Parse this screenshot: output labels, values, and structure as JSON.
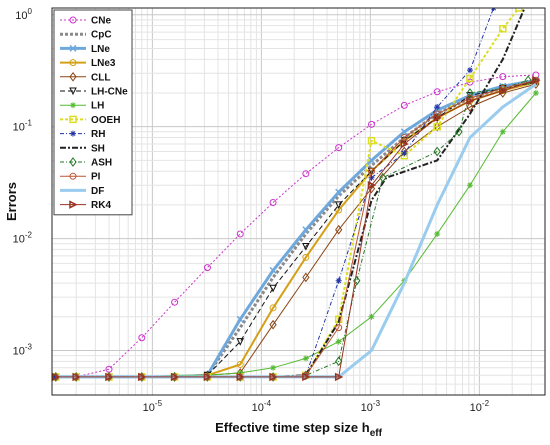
{
  "chart_data": {
    "type": "line",
    "xscale": "log",
    "yscale": "log",
    "xlim": [
      1.2e-06,
      0.04
    ],
    "ylim": [
      0.0004,
      1.15
    ],
    "grid": true,
    "legend_placement": "top-left",
    "xlabel": "Effective time step size h",
    "xlabel_sub": "eff",
    "ylabel": "Errors",
    "x_ticks": [
      {
        "value": 1e-05,
        "base": "10",
        "exp": "-5"
      },
      {
        "value": 0.0001,
        "base": "10",
        "exp": "-4"
      },
      {
        "value": 0.001,
        "base": "10",
        "exp": "-3"
      },
      {
        "value": 0.01,
        "base": "10",
        "exp": "-2"
      }
    ],
    "y_ticks": [
      {
        "value": 0.001,
        "base": "10",
        "exp": "-3"
      },
      {
        "value": 0.01,
        "base": "10",
        "exp": "-2"
      },
      {
        "value": 0.1,
        "base": "10",
        "exp": "-1"
      },
      {
        "value": 1,
        "base": "10",
        "exp": "0"
      }
    ],
    "series": [
      {
        "name": "CNe",
        "color": "#cc33cc",
        "width": 1,
        "dash": "2,2",
        "marker": "circle",
        "x": [
          1.3e-06,
          2e-06,
          4e-06,
          8e-06,
          1.6e-05,
          3.2e-05,
          6.4e-05,
          0.000128,
          0.000256,
          0.000512,
          0.001024,
          0.002048,
          0.0041,
          0.0082,
          0.0164,
          0.033
        ],
        "y": [
          0.00058,
          0.00058,
          0.00068,
          0.0013,
          0.0027,
          0.0055,
          0.011,
          0.021,
          0.038,
          0.065,
          0.105,
          0.155,
          0.205,
          0.25,
          0.28,
          0.29
        ]
      },
      {
        "name": "CpC",
        "color": "#8a8a8a",
        "width": 3,
        "dash": "3,2",
        "marker": "none",
        "x": [
          1.3e-06,
          2e-06,
          4e-06,
          8e-06,
          1.6e-05,
          3.2e-05,
          6.4e-05,
          0.000128,
          0.000256,
          0.000512,
          0.001024,
          0.002048,
          0.0041,
          0.0082,
          0.0164,
          0.033
        ],
        "y": [
          0.00058,
          0.00058,
          0.00058,
          0.00058,
          0.00058,
          0.0006,
          0.0016,
          0.0045,
          0.011,
          0.024,
          0.045,
          0.08,
          0.13,
          0.18,
          0.22,
          0.25
        ]
      },
      {
        "name": "LNe",
        "color": "#6fa8dc",
        "width": 3,
        "dash": "",
        "marker": "x",
        "x": [
          1.3e-06,
          2e-06,
          4e-06,
          8e-06,
          1.6e-05,
          3.2e-05,
          6.4e-05,
          0.000128,
          0.000256,
          0.000512,
          0.001024,
          0.002048,
          0.0041,
          0.0082,
          0.0164,
          0.033
        ],
        "y": [
          0.00058,
          0.00058,
          0.00058,
          0.00058,
          0.00058,
          0.0006,
          0.0019,
          0.0052,
          0.012,
          0.026,
          0.05,
          0.09,
          0.14,
          0.19,
          0.23,
          0.26
        ]
      },
      {
        "name": "LNe3",
        "color": "#d4a017",
        "width": 2,
        "dash": "",
        "marker": "circle",
        "x": [
          1.3e-06,
          2e-06,
          4e-06,
          8e-06,
          1.6e-05,
          3.2e-05,
          6.4e-05,
          0.000128,
          0.000256,
          0.000512,
          0.001024,
          0.002048,
          0.0041,
          0.0082,
          0.0164,
          0.033
        ],
        "y": [
          0.00058,
          0.00058,
          0.00058,
          0.00058,
          0.00058,
          0.0006,
          0.00075,
          0.0024,
          0.0068,
          0.018,
          0.04,
          0.075,
          0.12,
          0.17,
          0.21,
          0.25
        ]
      },
      {
        "name": "CLL",
        "color": "#8b4513",
        "width": 1,
        "dash": "",
        "marker": "diamond",
        "x": [
          1.3e-06,
          2e-06,
          4e-06,
          8e-06,
          1.6e-05,
          3.2e-05,
          6.4e-05,
          0.000128,
          0.000256,
          0.000512,
          0.001024,
          0.002048,
          0.0041,
          0.0082,
          0.0164,
          0.033
        ],
        "y": [
          0.00058,
          0.00058,
          0.00058,
          0.00058,
          0.00058,
          0.0006,
          0.00063,
          0.0017,
          0.0045,
          0.012,
          0.028,
          0.06,
          0.1,
          0.15,
          0.2,
          0.24
        ]
      },
      {
        "name": "LH-CNe",
        "color": "#111111",
        "width": 1,
        "dash": "5,3",
        "marker": "triangle-down",
        "x": [
          1.3e-06,
          2e-06,
          4e-06,
          8e-06,
          1.6e-05,
          3.2e-05,
          6.4e-05,
          0.000128,
          0.000256,
          0.000512,
          0.001024,
          0.002048,
          0.0041,
          0.0082,
          0.0164,
          0.033
        ],
        "y": [
          0.00058,
          0.00058,
          0.00058,
          0.00058,
          0.00058,
          0.0006,
          0.0012,
          0.0036,
          0.0085,
          0.02,
          0.04,
          0.075,
          0.12,
          0.19,
          0.22,
          0.25
        ]
      },
      {
        "name": "LH",
        "color": "#55bb33",
        "width": 1,
        "dash": "",
        "marker": "star",
        "x": [
          1.3e-06,
          2e-06,
          4e-06,
          8e-06,
          1.6e-05,
          3.2e-05,
          6.4e-05,
          0.000128,
          0.000256,
          0.000512,
          0.001024,
          0.002048,
          0.0041,
          0.0082,
          0.0164,
          0.033
        ],
        "y": [
          0.00058,
          0.00058,
          0.00058,
          0.00058,
          0.0006,
          0.0006,
          0.00063,
          0.0007,
          0.00085,
          0.0012,
          0.002,
          0.0042,
          0.011,
          0.03,
          0.09,
          0.2
        ]
      },
      {
        "name": "OOEH",
        "color": "#dddd22",
        "width": 2,
        "dash": "3,2",
        "marker": "square",
        "x": [
          1.3e-06,
          2e-06,
          4e-06,
          8e-06,
          1.6e-05,
          3.2e-05,
          6.4e-05,
          0.000128,
          0.000256,
          0.000512,
          0.001024,
          0.002048,
          0.0041,
          0.0082,
          0.0164,
          0.023
        ],
        "y": [
          0.00058,
          0.00058,
          0.00058,
          0.00058,
          0.00058,
          0.00058,
          0.00058,
          0.00058,
          0.0006,
          0.0019,
          0.075,
          0.055,
          0.1,
          0.27,
          0.75,
          1.15
        ]
      },
      {
        "name": "RH",
        "color": "#2233aa",
        "width": 1,
        "dash": "4,2,1,2",
        "marker": "star",
        "x": [
          1.3e-06,
          2e-06,
          4e-06,
          8e-06,
          1.6e-05,
          3.2e-05,
          6.4e-05,
          0.000128,
          0.000256,
          0.000512,
          0.001024,
          0.002048,
          0.0041,
          0.0082,
          0.0135
        ],
        "y": [
          0.00058,
          0.00058,
          0.00058,
          0.00058,
          0.00058,
          0.00058,
          0.00058,
          0.00058,
          0.0006,
          0.0042,
          0.035,
          0.058,
          0.15,
          0.32,
          1.15
        ]
      },
      {
        "name": "SH",
        "color": "#222222",
        "width": 2,
        "dash": "6,2,2,2",
        "marker": "none",
        "x": [
          1.3e-06,
          2e-06,
          4e-06,
          8e-06,
          1.6e-05,
          3.2e-05,
          6.4e-05,
          0.000128,
          0.000256,
          0.000512,
          0.001024,
          0.0014,
          0.0041,
          0.0082,
          0.0164,
          0.026
        ],
        "y": [
          0.00058,
          0.00058,
          0.00058,
          0.00058,
          0.00058,
          0.00058,
          0.00058,
          0.00058,
          0.0006,
          0.0018,
          0.022,
          0.035,
          0.05,
          0.13,
          0.4,
          1.15
        ]
      },
      {
        "name": "ASH",
        "color": "#227722",
        "width": 1,
        "dash": "4,2,1,2",
        "marker": "diamond",
        "x": [
          1.3e-06,
          2e-06,
          4e-06,
          8e-06,
          1.6e-05,
          3.2e-05,
          6.4e-05,
          0.000128,
          0.000256,
          0.000512,
          0.00075,
          0.0013,
          0.0041,
          0.0065,
          0.0082,
          0.0164,
          0.028
        ],
        "y": [
          0.00058,
          0.00058,
          0.00058,
          0.00058,
          0.00058,
          0.00058,
          0.00058,
          0.00058,
          0.0006,
          0.0008,
          0.0042,
          0.035,
          0.06,
          0.09,
          0.2,
          0.22,
          0.26
        ]
      },
      {
        "name": "PI",
        "color": "#bb5533",
        "width": 1,
        "dash": "",
        "marker": "circle",
        "x": [
          1.3e-06,
          2e-06,
          4e-06,
          8e-06,
          1.6e-05,
          3.2e-05,
          6.4e-05,
          0.000128,
          0.000256,
          0.000512,
          0.001024,
          0.002048,
          0.0041,
          0.0082,
          0.0164,
          0.033
        ],
        "y": [
          0.00058,
          0.00058,
          0.00058,
          0.00058,
          0.00058,
          0.00058,
          0.00058,
          0.00058,
          0.0006,
          0.0016,
          0.04,
          0.08,
          0.13,
          0.18,
          0.22,
          0.26
        ]
      },
      {
        "name": "DF",
        "color": "#99ccee",
        "width": 3,
        "dash": "",
        "marker": "none",
        "x": [
          1.3e-06,
          2e-06,
          4e-06,
          8e-06,
          1.6e-05,
          3.2e-05,
          6.4e-05,
          0.000128,
          0.000256,
          0.000512,
          0.001024,
          0.002048,
          0.0041,
          0.0082,
          0.0164,
          0.033
        ],
        "y": [
          0.00058,
          0.00058,
          0.00058,
          0.00058,
          0.00058,
          0.00058,
          0.00058,
          0.00058,
          0.00058,
          0.00058,
          0.001,
          0.004,
          0.02,
          0.08,
          0.15,
          0.24
        ]
      },
      {
        "name": "RK4",
        "color": "#993322",
        "width": 1,
        "dash": "",
        "marker": "triangle-right",
        "x": [
          1.3e-06,
          2e-06,
          4e-06,
          8e-06,
          1.6e-05,
          3.2e-05,
          6.4e-05,
          0.000128,
          0.000256,
          0.000512,
          0.001024,
          0.002048,
          0.0041,
          0.0082,
          0.0164,
          0.033
        ],
        "y": [
          0.00058,
          0.00058,
          0.00058,
          0.00058,
          0.00058,
          0.00058,
          0.00058,
          0.00058,
          0.00058,
          0.00058,
          0.03,
          0.07,
          0.12,
          0.17,
          0.21,
          0.26
        ]
      }
    ]
  }
}
